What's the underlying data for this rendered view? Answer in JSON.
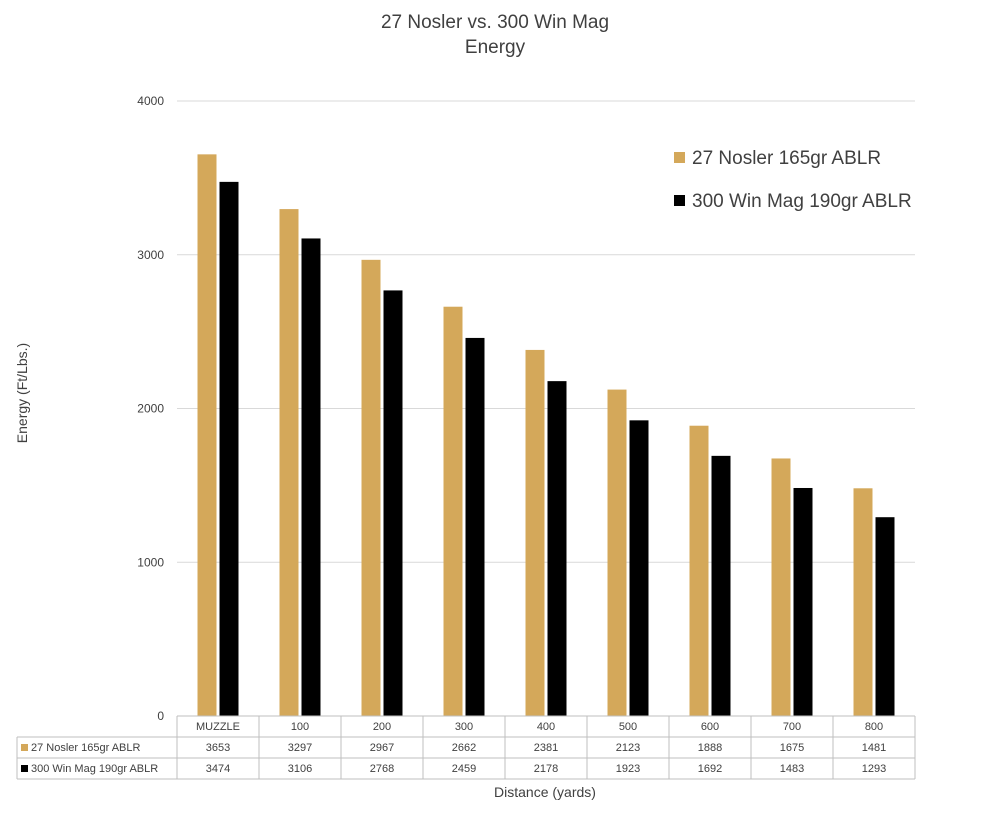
{
  "chart_data": {
    "type": "bar",
    "title": "27 Nosler vs. 300 Win Mag",
    "subtitle": "Energy",
    "xlabel": "Distance (yards)",
    "ylabel": "Energy (Ft/Lbs.)",
    "ylim": [
      0,
      4000
    ],
    "yticks": [
      "0",
      "1000",
      "2000",
      "3000",
      "4000"
    ],
    "grid": true,
    "legend_position": "top-right",
    "categories": [
      "MUZZLE",
      "100",
      "200",
      "300",
      "400",
      "500",
      "600",
      "700",
      "800"
    ],
    "series": [
      {
        "name": "27 Nosler 165gr ABLR",
        "color": "#D4A85A",
        "values": [
          3653,
          3297,
          2967,
          2662,
          2381,
          2123,
          1888,
          1675,
          1481
        ]
      },
      {
        "name": "300 Win Mag 190gr ABLR",
        "color": "#000000",
        "values": [
          3474,
          3106,
          2768,
          2459,
          2178,
          1923,
          1692,
          1483,
          1293
        ]
      }
    ],
    "data_table": true
  }
}
